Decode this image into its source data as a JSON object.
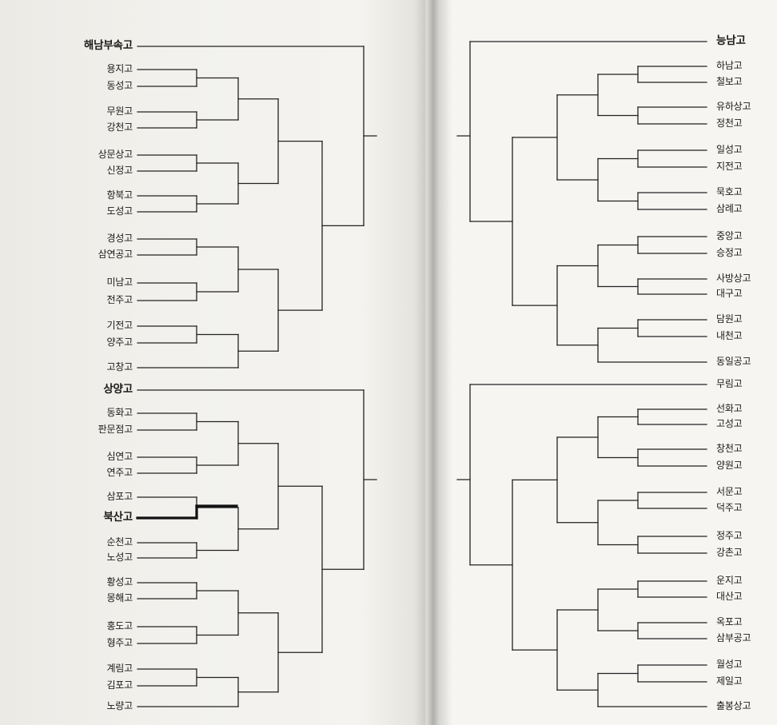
{
  "bracket": {
    "left_top": [
      "해남부속고",
      "용지고",
      "동성고",
      "무원고",
      "강천고",
      "상문상고",
      "신정고",
      "항북고",
      "도성고",
      "경성고",
      "삼연공고",
      "미남고",
      "전주고",
      "기전고",
      "양주고",
      "고창고"
    ],
    "left_bottom": [
      "상양고",
      "동화고",
      "판문점고",
      "심연고",
      "연주고",
      "삼포고",
      "북산고",
      "순천고",
      "노성고",
      "황성고",
      "몽해고",
      "홍도고",
      "형주고",
      "계림고",
      "김포고",
      "노량고"
    ],
    "right_top": [
      "능남고",
      "하남고",
      "철보고",
      "유하상고",
      "정천고",
      "일성고",
      "지전고",
      "묵호고",
      "삼례고",
      "중앙고",
      "승정고",
      "사방상고",
      "대구고",
      "담원고",
      "내천고",
      "동일공고"
    ],
    "right_bottom": [
      "무림고",
      "선화고",
      "고성고",
      "창천고",
      "양원고",
      "서문고",
      "덕주고",
      "정주고",
      "강촌고",
      "운지고",
      "대산고",
      "옥포고",
      "삼부공고",
      "월성고",
      "제일고",
      "출봉상고"
    ]
  },
  "colors": {
    "line": "#222222",
    "highlight": "#111111"
  }
}
